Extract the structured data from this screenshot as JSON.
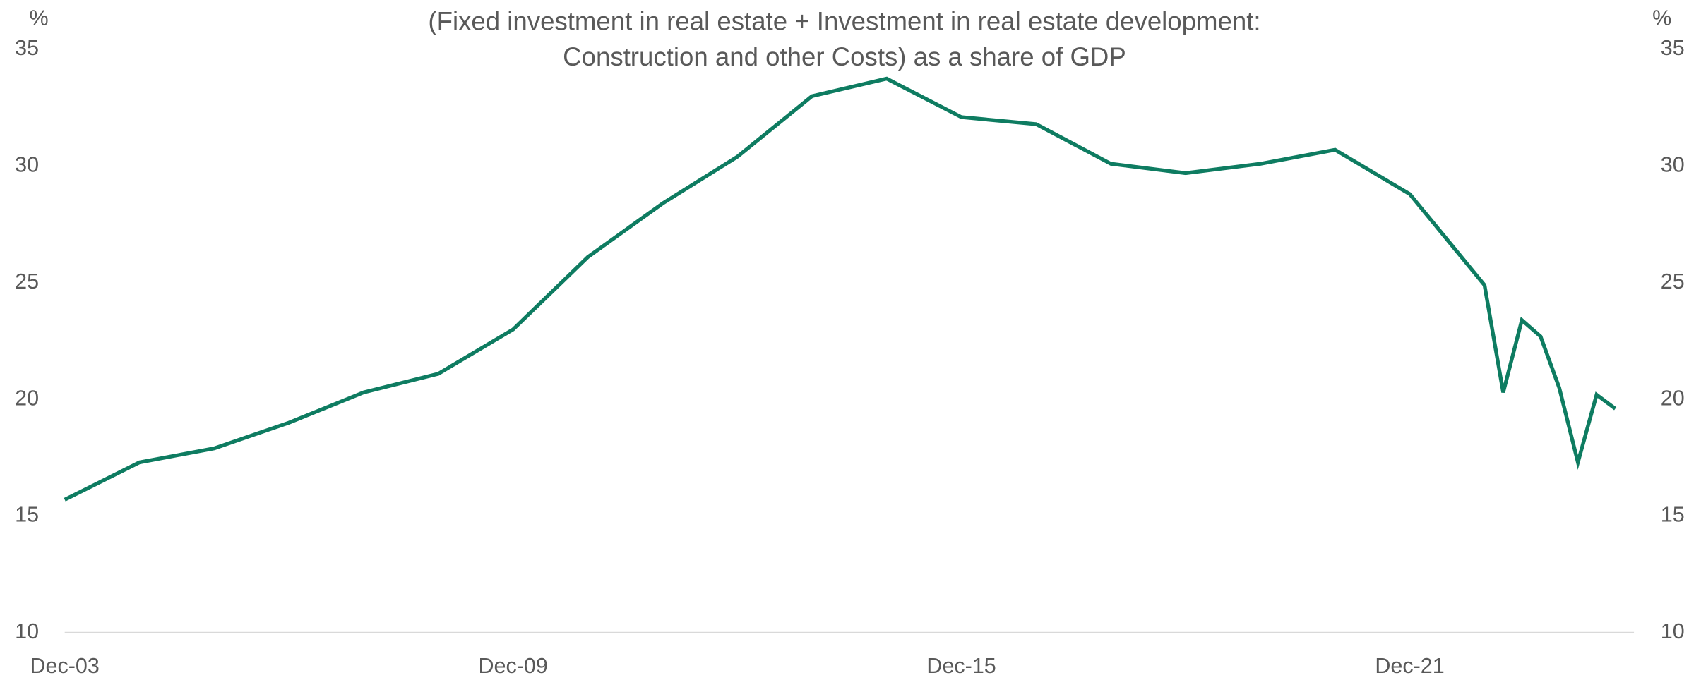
{
  "chart_data": {
    "type": "line",
    "title": "(Fixed investment in real estate + Investment in real estate development: Construction and other Costs) as a share of GDP",
    "ylabel": "%",
    "x": [
      2003,
      2004,
      2005,
      2006,
      2007,
      2008,
      2009,
      2010,
      2011,
      2012,
      2013,
      2014,
      2015,
      2016,
      2017,
      2018,
      2019,
      2020,
      2021,
      2022,
      2022.25,
      2022.5,
      2022.75,
      2023,
      2023.25,
      2023.5,
      2023.75
    ],
    "series": [
      {
        "name": null,
        "color": "#0e7c61",
        "values": [
          15.7,
          17.3,
          17.9,
          19.0,
          20.3,
          21.1,
          23.0,
          26.1,
          28.4,
          30.4,
          33.0,
          33.75,
          32.1,
          31.8,
          30.1,
          29.7,
          30.1,
          30.7,
          28.8,
          24.9,
          20.3,
          23.4,
          22.7,
          20.5,
          17.3,
          20.2,
          19.6
        ]
      }
    ],
    "xlim": [
      2003,
      2024
    ],
    "xticks": [
      {
        "value": 2003,
        "label": "Dec-03"
      },
      {
        "value": 2009,
        "label": "Dec-09"
      },
      {
        "value": 2015,
        "label": "Dec-15"
      },
      {
        "value": 2021,
        "label": "Dec-21"
      }
    ],
    "ylim": [
      10,
      35
    ],
    "yticks": [
      10,
      15,
      20,
      25,
      30,
      35
    ],
    "right_axis": true,
    "grid": false
  }
}
